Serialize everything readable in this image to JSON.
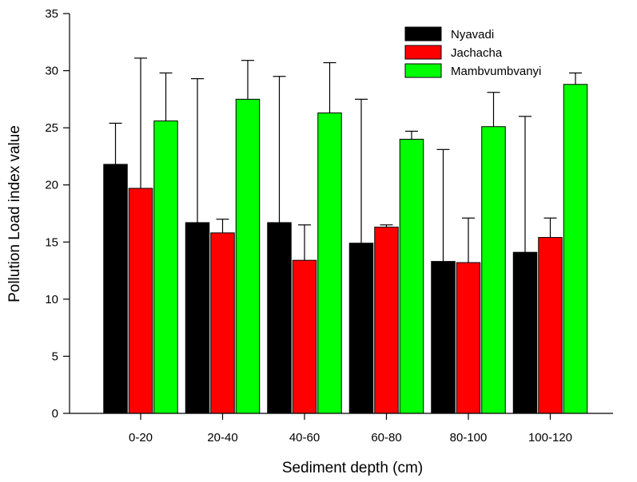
{
  "chart_data": {
    "type": "bar",
    "xlabel": "Sediment depth (cm)",
    "ylabel": "Pollution Load index value",
    "ylim": [
      0,
      35
    ],
    "yticks": [
      0,
      5,
      10,
      15,
      20,
      25,
      30,
      35
    ],
    "categories": [
      "0-20",
      "20-40",
      "40-60",
      "60-80",
      "80-100",
      "100-120"
    ],
    "legend_position": "top-right",
    "grid": false,
    "series": [
      {
        "name": "Nyavadi",
        "color": "#000000",
        "values": [
          21.8,
          16.7,
          16.7,
          14.9,
          13.3,
          14.1
        ],
        "error_upper": [
          25.4,
          29.3,
          29.5,
          27.5,
          23.1,
          26.0
        ]
      },
      {
        "name": "Jachacha",
        "color": "#ff0000",
        "values": [
          19.7,
          15.8,
          13.4,
          16.3,
          13.2,
          15.4
        ],
        "error_upper": [
          31.1,
          17.0,
          16.5,
          16.5,
          17.1,
          17.1
        ]
      },
      {
        "name": "Mambvumbvanyi",
        "color": "#00ff00",
        "values": [
          25.6,
          27.5,
          26.3,
          24.0,
          25.1,
          28.8
        ],
        "error_upper": [
          29.8,
          30.9,
          30.7,
          24.7,
          28.1,
          29.8
        ]
      }
    ]
  }
}
